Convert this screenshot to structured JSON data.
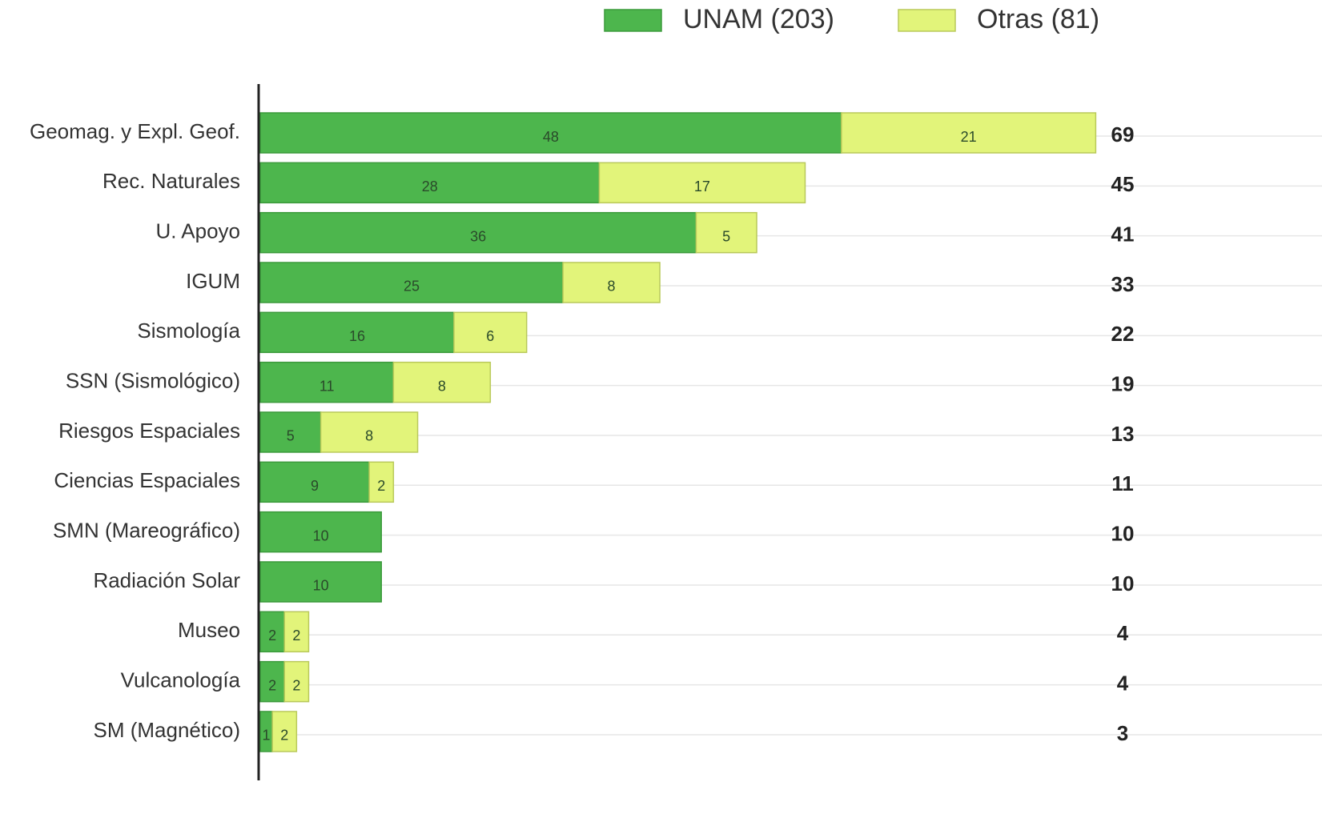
{
  "chart_data": {
    "type": "stacked-bar-horizontal",
    "categories": [
      "Geomag. y Expl. Geof.",
      "Rec. Naturales",
      "U. Apoyo",
      "IGUM",
      "Sismología",
      "SSN (Sismológico)",
      "Riesgos Espaciales",
      "Ciencias Espaciales",
      "SMN (Mareográfico)",
      "Radiación Solar",
      "Museo",
      "Vulcanología",
      "SM (Magnético)"
    ],
    "series": [
      {
        "name": "UNAM (203)",
        "color": "#4db64d",
        "values": [
          48,
          28,
          36,
          25,
          16,
          11,
          5,
          9,
          10,
          10,
          2,
          2,
          1
        ]
      },
      {
        "name": "Otras (81)",
        "color": "#e2f47a",
        "values": [
          21,
          17,
          5,
          8,
          6,
          8,
          8,
          2,
          null,
          null,
          2,
          2,
          2
        ]
      }
    ],
    "totals": [
      69,
      45,
      41,
      33,
      22,
      19,
      13,
      11,
      10,
      10,
      4,
      4,
      3
    ],
    "xlim": [
      0,
      82
    ],
    "grid": true,
    "legend": "top"
  }
}
